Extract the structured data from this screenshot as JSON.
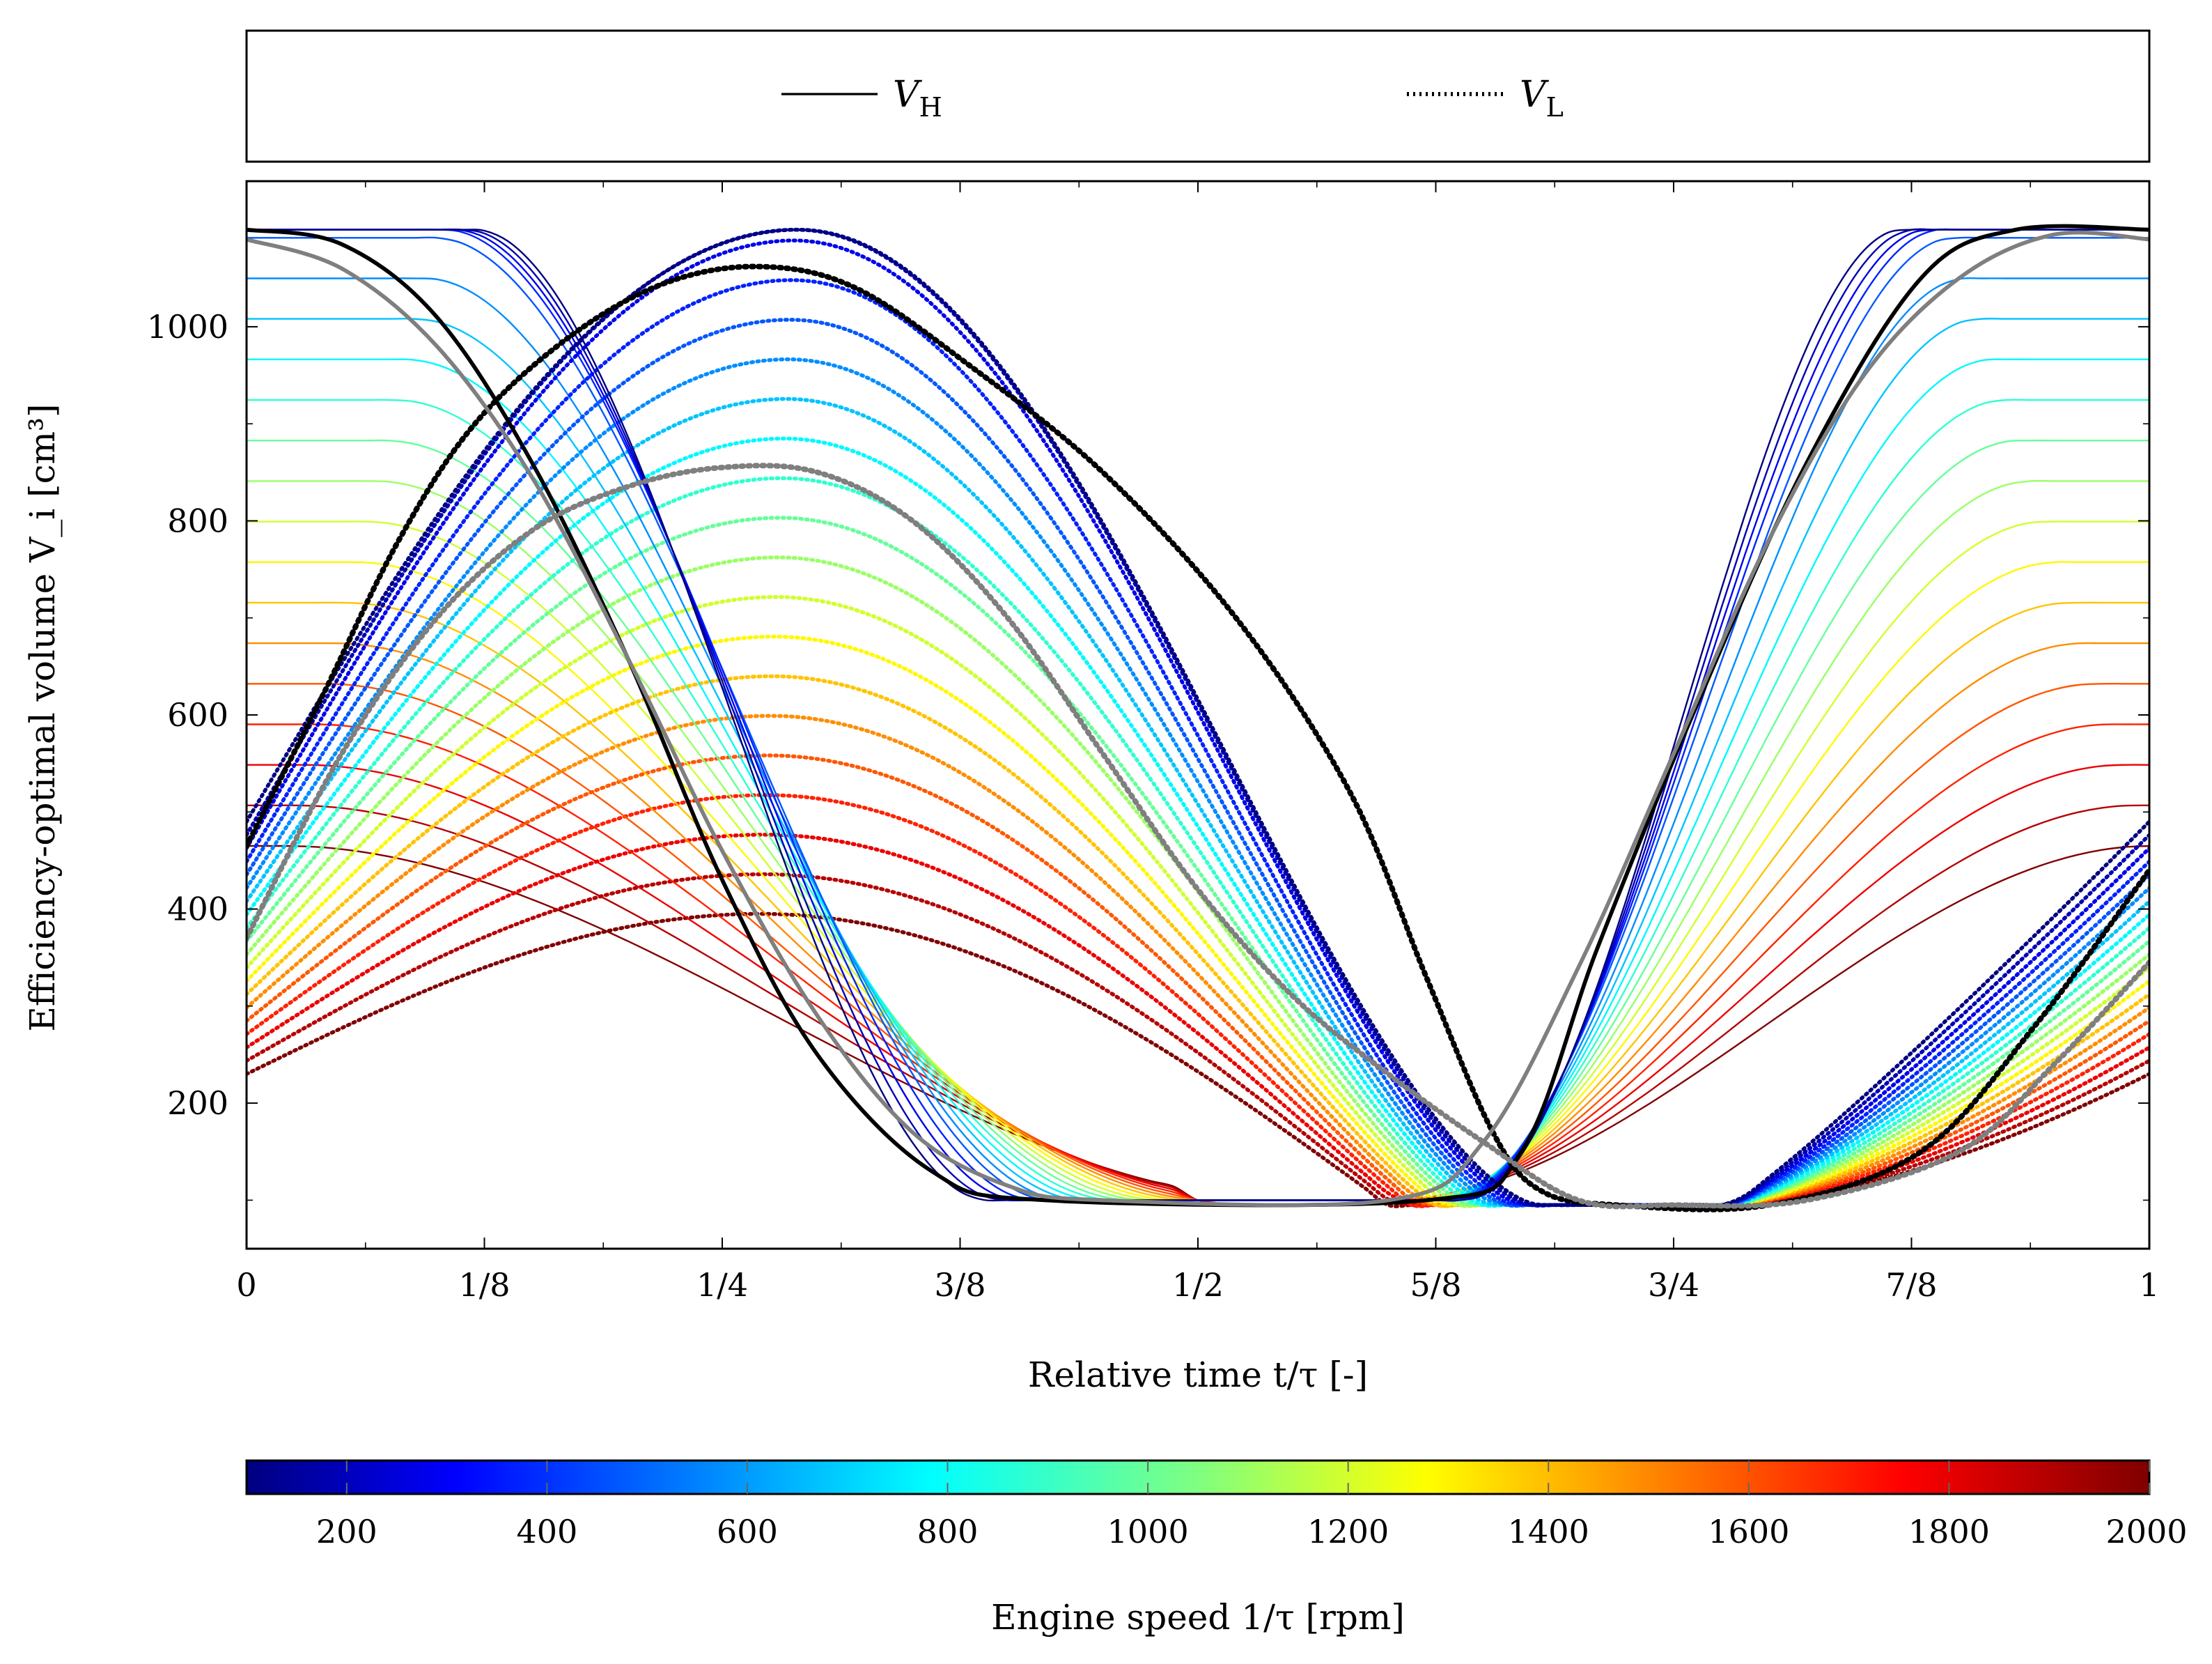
{
  "chart_data": {
    "type": "line",
    "title": "",
    "xlabel": "Relative time t/τ [-]",
    "ylabel": "Efficiency-optimal volume V_i [cm³]",
    "xlim": [
      0,
      1
    ],
    "ylim": [
      50,
      1150
    ],
    "x_tick_values": [
      0,
      0.125,
      0.25,
      0.375,
      0.5,
      0.625,
      0.75,
      0.875,
      1
    ],
    "x_tick_labels": [
      "0",
      "1/8",
      "1/4",
      "3/8",
      "1/2",
      "5/8",
      "3/4",
      "7/8",
      "1"
    ],
    "y_tick_values": [
      200,
      400,
      600,
      800,
      1000
    ],
    "y_tick_labels": [
      "200",
      "400",
      "600",
      "800",
      "1000"
    ],
    "legend": {
      "position": "top",
      "entries": [
        {
          "label": "V",
          "subscript": "H",
          "style": "solid"
        },
        {
          "label": "V",
          "subscript": "L",
          "style": "dotted"
        }
      ]
    },
    "colorbar": {
      "label": "Engine speed 1/τ [rpm]",
      "range": [
        100,
        2000
      ],
      "ticks": [
        200,
        400,
        600,
        800,
        1000,
        1200,
        1400,
        1600,
        1800,
        2000
      ],
      "tick_labels": [
        "200",
        "400",
        "600",
        "800",
        "1000",
        "1200",
        "1400",
        "1600",
        "1800",
        "2000"
      ],
      "colormap": "jet"
    },
    "speeds_rpm": [
      2000,
      1900,
      1800,
      1700,
      1600,
      1500,
      1400,
      1300,
      1200,
      1100,
      1000,
      900,
      800,
      700,
      600,
      500,
      400,
      300,
      200,
      100
    ],
    "highlight_series": [
      {
        "name": "black",
        "color": "#000000",
        "stroke_scale": 2.2,
        "VH": [
          [
            0,
            1100
          ],
          [
            0.05,
            1085
          ],
          [
            0.1,
            1010
          ],
          [
            0.15,
            860
          ],
          [
            0.2,
            660
          ],
          [
            0.25,
            430
          ],
          [
            0.3,
            250
          ],
          [
            0.36,
            130
          ],
          [
            0.42,
            100
          ],
          [
            0.62,
            100
          ],
          [
            0.67,
            150
          ],
          [
            0.71,
            360
          ],
          [
            0.76,
            600
          ],
          [
            0.82,
            860
          ],
          [
            0.88,
            1050
          ],
          [
            0.93,
            1100
          ],
          [
            1,
            1100
          ]
        ],
        "VL": [
          [
            0,
            465
          ],
          [
            0.04,
            620
          ],
          [
            0.08,
            780
          ],
          [
            0.12,
            900
          ],
          [
            0.17,
            990
          ],
          [
            0.22,
            1045
          ],
          [
            0.27,
            1062
          ],
          [
            0.32,
            1040
          ],
          [
            0.38,
            960
          ],
          [
            0.45,
            850
          ],
          [
            0.52,
            700
          ],
          [
            0.58,
            520
          ],
          [
            0.62,
            330
          ],
          [
            0.655,
            170
          ],
          [
            0.68,
            110
          ],
          [
            0.72,
            95
          ],
          [
            0.8,
            95
          ],
          [
            0.88,
            150
          ],
          [
            0.94,
            280
          ],
          [
            1,
            440
          ]
        ]
      },
      {
        "name": "gray",
        "color": "#7f7f7f",
        "stroke_scale": 2.2,
        "VH": [
          [
            0,
            1090
          ],
          [
            0.05,
            1060
          ],
          [
            0.1,
            980
          ],
          [
            0.15,
            845
          ],
          [
            0.2,
            660
          ],
          [
            0.25,
            460
          ],
          [
            0.3,
            290
          ],
          [
            0.35,
            170
          ],
          [
            0.4,
            115
          ],
          [
            0.45,
            100
          ],
          [
            0.6,
            100
          ],
          [
            0.65,
            160
          ],
          [
            0.7,
            340
          ],
          [
            0.75,
            560
          ],
          [
            0.8,
            780
          ],
          [
            0.85,
            950
          ],
          [
            0.9,
            1050
          ],
          [
            0.95,
            1095
          ],
          [
            1,
            1090
          ]
        ],
        "VL": [
          [
            0,
            370
          ],
          [
            0.05,
            560
          ],
          [
            0.1,
            700
          ],
          [
            0.15,
            790
          ],
          [
            0.2,
            835
          ],
          [
            0.25,
            855
          ],
          [
            0.3,
            850
          ],
          [
            0.35,
            800
          ],
          [
            0.4,
            700
          ],
          [
            0.45,
            560
          ],
          [
            0.5,
            420
          ],
          [
            0.55,
            310
          ],
          [
            0.6,
            230
          ],
          [
            0.65,
            160
          ],
          [
            0.7,
            100
          ],
          [
            0.75,
            95
          ],
          [
            0.82,
            100
          ],
          [
            0.9,
            150
          ],
          [
            0.95,
            240
          ],
          [
            1,
            345
          ]
        ]
      }
    ]
  }
}
